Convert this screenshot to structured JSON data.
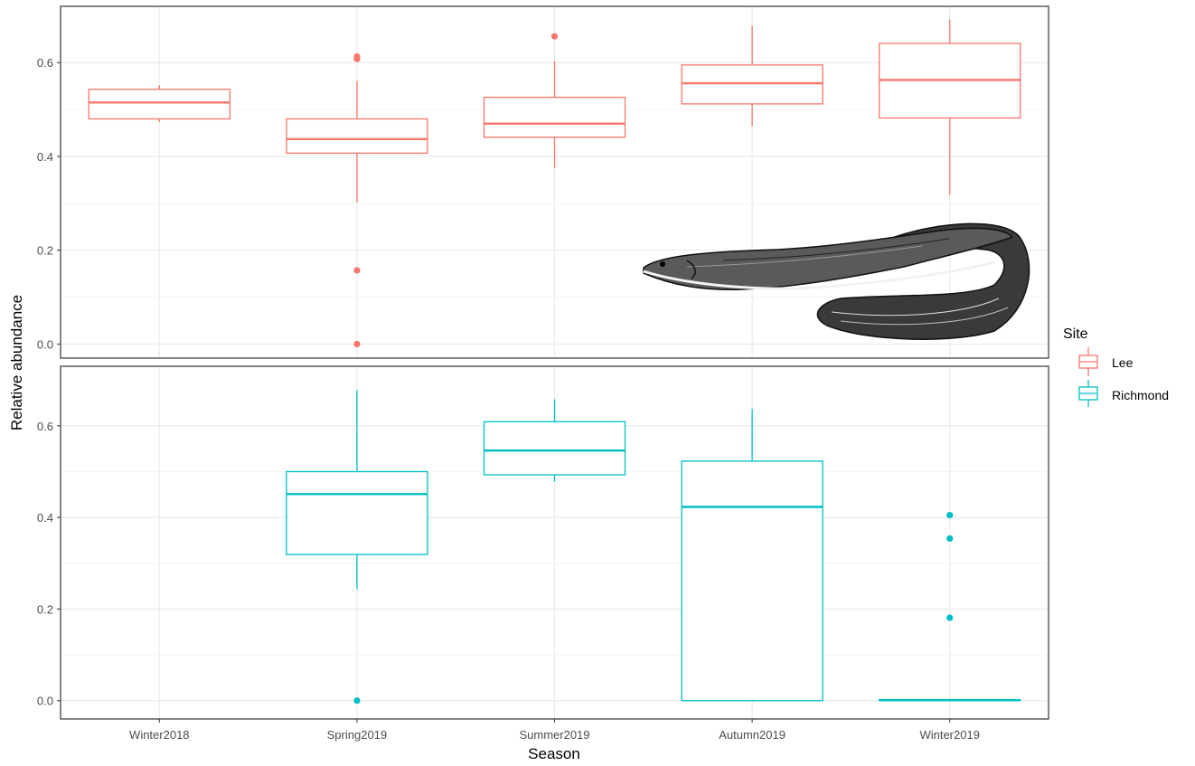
{
  "chart_data": {
    "type": "boxplot",
    "xlabel": "Season",
    "ylabel": "Relative abundance",
    "categories": [
      "Winter2018",
      "Spring2019",
      "Summer2019",
      "Autumn2019",
      "Winter2019"
    ],
    "yticks": [
      0.0,
      0.2,
      0.4,
      0.6
    ],
    "ytick_labels": [
      "0.0",
      "0.2",
      "0.4",
      "0.6"
    ],
    "grid": true,
    "legend": {
      "title": "Site",
      "position": "right",
      "entries": [
        "Lee",
        "Richmond"
      ]
    },
    "colors": {
      "Lee": "#F8766D",
      "Richmond": "#00BFC4"
    },
    "panels": [
      {
        "site": "Lee",
        "ylim": [
          -0.03,
          0.72
        ],
        "boxes": [
          {
            "category": "Winter2018",
            "whisker_low": 0.473,
            "q1": 0.48,
            "median": 0.515,
            "q3": 0.543,
            "whisker_high": 0.552,
            "outliers": []
          },
          {
            "category": "Spring2019",
            "whisker_low": 0.302,
            "q1": 0.407,
            "median": 0.437,
            "q3": 0.48,
            "whisker_high": 0.561,
            "outliers": [
              0.613,
              0.608,
              0.157,
              0.0
            ]
          },
          {
            "category": "Summer2019",
            "whisker_low": 0.376,
            "q1": 0.441,
            "median": 0.47,
            "q3": 0.526,
            "whisker_high": 0.603,
            "outliers": [
              0.656
            ]
          },
          {
            "category": "Autumn2019",
            "whisker_low": 0.464,
            "q1": 0.512,
            "median": 0.556,
            "q3": 0.595,
            "whisker_high": 0.679,
            "outliers": []
          },
          {
            "category": "Winter2019",
            "whisker_low": 0.318,
            "q1": 0.482,
            "median": 0.563,
            "q3": 0.641,
            "whisker_high": 0.692,
            "outliers": []
          }
        ]
      },
      {
        "site": "Richmond",
        "ylim": [
          -0.04,
          0.73
        ],
        "boxes": [
          {
            "category": "Spring2019",
            "whisker_low": 0.243,
            "q1": 0.319,
            "median": 0.451,
            "q3": 0.5,
            "whisker_high": 0.678,
            "outliers": [
              0.0
            ]
          },
          {
            "category": "Summer2019",
            "whisker_low": 0.478,
            "q1": 0.493,
            "median": 0.546,
            "q3": 0.609,
            "whisker_high": 0.658,
            "outliers": []
          },
          {
            "category": "Autumn2019",
            "whisker_low": 0.0,
            "q1": 0.0,
            "median": 0.423,
            "q3": 0.523,
            "whisker_high": 0.637,
            "outliers": []
          },
          {
            "category": "Winter2019",
            "whisker_low": 0.0,
            "q1": 0.0,
            "median": 0.001,
            "q3": 0.002,
            "whisker_high": 0.002,
            "outliers": [
              0.405,
              0.354,
              0.181
            ]
          }
        ]
      }
    ]
  }
}
